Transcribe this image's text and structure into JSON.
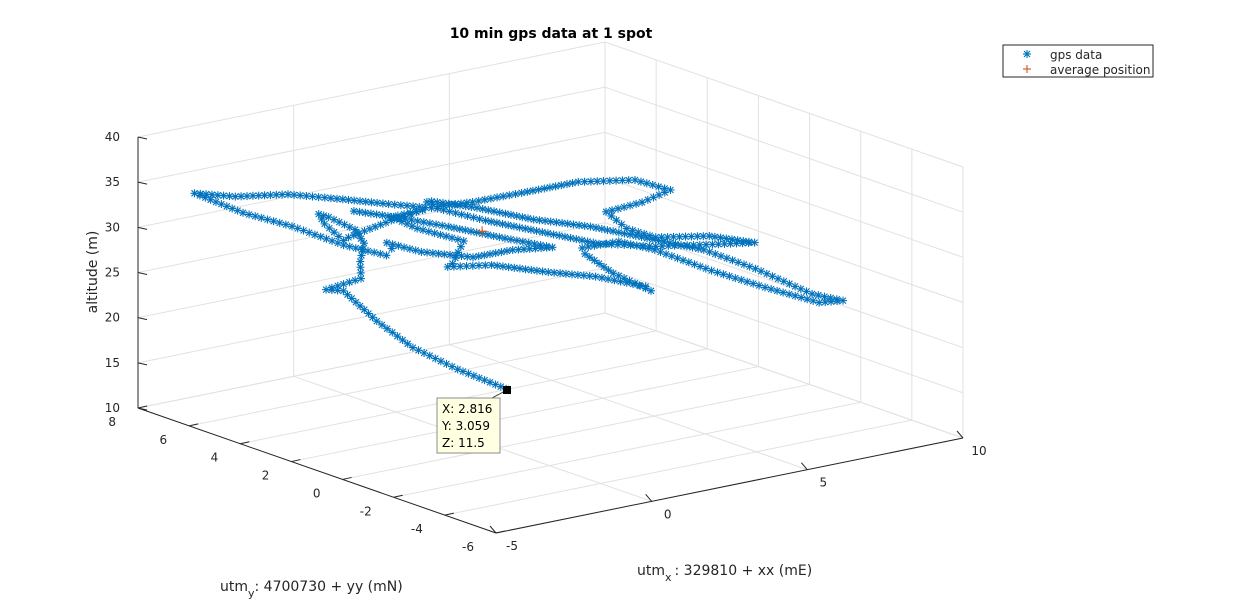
{
  "chart_data": {
    "type": "scatter",
    "title": "10 min gps data at 1 spot",
    "xlabel": {
      "main": "utm",
      "sub": "x",
      "rest": ": 329810 + xx (mE)"
    },
    "ylabel": {
      "main": "utm",
      "sub": "y",
      "rest": ": 4700730 + yy (mN)"
    },
    "zlabel": "altitude (m)",
    "xlim": [
      -5,
      10
    ],
    "ylim": [
      -6,
      8
    ],
    "zlim": [
      10,
      40
    ],
    "xticks": [
      "-5",
      "0",
      "5",
      "10"
    ],
    "yticks": [
      "-6",
      "-4",
      "-2",
      "0",
      "2",
      "4",
      "6",
      "8"
    ],
    "zticks": [
      "10",
      "15",
      "20",
      "25",
      "30",
      "35",
      "40"
    ],
    "grid": true,
    "legend_position": "top-right",
    "legend": [
      "gps data",
      "average position"
    ],
    "series": [
      {
        "name": "gps data",
        "marker": "*",
        "color": "#0072BD",
        "path": [
          [
            2.8,
            3.1,
            11.5
          ],
          [
            1.9,
            3.9,
            13.5
          ],
          [
            1.2,
            4.8,
            15.5
          ],
          [
            0.7,
            5.6,
            18.0
          ],
          [
            0.2,
            6.3,
            21.0
          ],
          [
            -0.6,
            6.0,
            22.0
          ],
          [
            -0.3,
            5.0,
            24.0
          ],
          [
            -0.9,
            4.3,
            27.0
          ],
          [
            -1.6,
            3.3,
            30.5
          ],
          [
            -2.3,
            2.8,
            33.0
          ],
          [
            -2.9,
            3.1,
            34.5
          ],
          [
            -2.4,
            4.1,
            33.5
          ],
          [
            -1.8,
            4.6,
            31.5
          ],
          [
            -1.6,
            4.1,
            30.0
          ],
          [
            -2.1,
            3.3,
            31.5
          ],
          [
            -1.3,
            2.6,
            33.5
          ],
          [
            -0.3,
            2.6,
            34.0
          ],
          [
            0.2,
            3.2,
            33.0
          ],
          [
            -0.3,
            3.8,
            32.0
          ],
          [
            0.6,
            3.9,
            30.0
          ],
          [
            1.6,
            3.3,
            28.5
          ],
          [
            1.9,
            4.1,
            25.0
          ],
          [
            2.4,
            4.9,
            23.5
          ],
          [
            3.4,
            4.4,
            23.5
          ],
          [
            4.4,
            3.4,
            23.0
          ],
          [
            5.1,
            2.4,
            23.0
          ],
          [
            5.8,
            1.3,
            22.5
          ],
          [
            5.4,
            0.6,
            23.0
          ],
          [
            4.6,
            1.1,
            25.0
          ],
          [
            4.1,
            1.6,
            27.0
          ],
          [
            3.6,
            1.1,
            28.5
          ],
          [
            4.2,
            0.4,
            29.5
          ],
          [
            4.7,
            -0.4,
            29.0
          ],
          [
            5.7,
            -1.4,
            27.0
          ],
          [
            6.6,
            -2.4,
            25.5
          ],
          [
            7.6,
            -3.3,
            24.0
          ],
          [
            8.2,
            -3.5,
            24.0
          ],
          [
            7.7,
            -2.9,
            24.5
          ],
          [
            6.7,
            -1.9,
            27.0
          ],
          [
            5.7,
            -1.1,
            29.0
          ],
          [
            4.7,
            -0.1,
            30.0
          ],
          [
            3.7,
            0.9,
            31.0
          ],
          [
            2.7,
            1.9,
            31.5
          ],
          [
            1.7,
            2.9,
            32.5
          ],
          [
            0.9,
            3.7,
            33.0
          ],
          [
            0.5,
            3.4,
            33.5
          ],
          [
            0.2,
            2.6,
            34.0
          ],
          [
            0.9,
            2.1,
            34.5
          ],
          [
            1.9,
            1.4,
            35.5
          ],
          [
            2.9,
            0.4,
            37.0
          ],
          [
            3.9,
            -0.6,
            37.5
          ],
          [
            4.3,
            -1.5,
            37.0
          ],
          [
            3.8,
            -1.0,
            35.5
          ],
          [
            3.3,
            -0.2,
            34.0
          ],
          [
            3.8,
            -0.4,
            32.0
          ],
          [
            4.4,
            -0.8,
            31.0
          ],
          [
            5.3,
            -1.8,
            31.5
          ],
          [
            6.1,
            -2.6,
            31.0
          ],
          [
            5.4,
            -1.8,
            30.5
          ],
          [
            4.4,
            -0.8,
            30.0
          ],
          [
            3.4,
            0.2,
            30.0
          ],
          [
            2.4,
            1.2,
            31.0
          ],
          [
            1.4,
            2.2,
            32.0
          ],
          [
            0.6,
            3.1,
            33.0
          ],
          [
            -0.4,
            3.8,
            33.5
          ],
          [
            -1.4,
            4.6,
            34.0
          ],
          [
            -2.4,
            5.3,
            34.5
          ],
          [
            -3.6,
            5.9,
            34.5
          ],
          [
            -4.5,
            6.4,
            35.0
          ],
          [
            -3.6,
            5.6,
            33.0
          ],
          [
            -2.6,
            4.9,
            31.5
          ],
          [
            -1.6,
            4.1,
            29.5
          ],
          [
            -0.8,
            3.4,
            28.5
          ],
          [
            -0.3,
            3.8,
            28.5
          ],
          [
            0.2,
            4.6,
            28.0
          ],
          [
            0.9,
            4.1,
            27.0
          ],
          [
            1.9,
            3.3,
            26.5
          ],
          [
            2.6,
            2.6,
            27.5
          ],
          [
            3.3,
            1.9,
            28.0
          ],
          [
            2.6,
            2.9,
            28.5
          ],
          [
            1.6,
            3.9,
            29.5
          ],
          [
            0.6,
            4.6,
            30.5
          ],
          [
            -0.2,
            5.4,
            31.0
          ]
        ]
      },
      {
        "name": "average position",
        "marker": "+",
        "color": "#D95319",
        "points": [
          [
            1.7,
            2.7,
            30.1
          ]
        ]
      }
    ],
    "datatip": {
      "x": 2.816,
      "y": 3.059,
      "z": 11.5,
      "lines": [
        "X: 2.816",
        "Y: 3.059",
        "Z: 11.5"
      ]
    }
  }
}
